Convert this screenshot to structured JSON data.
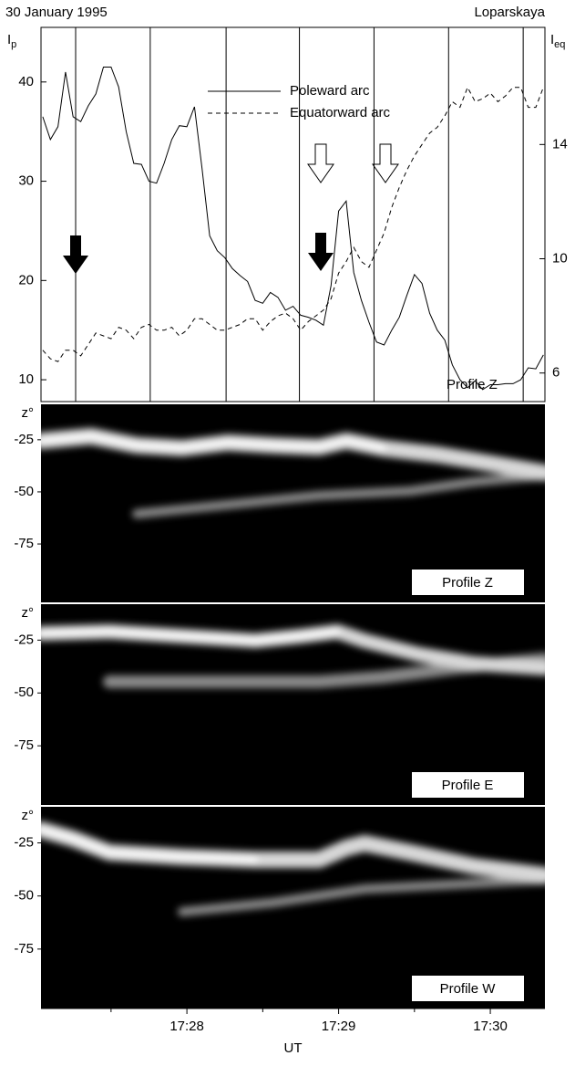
{
  "chart_data": [
    {
      "type": "line",
      "title": "30 January 1995",
      "subtitle": "Loparskaya",
      "annotation": "Profile Z",
      "ylabel": "I",
      "ylabel_subscript": "p",
      "y2label": "I",
      "y2label_subscript": "eq",
      "xlim": [
        1622.3,
        1821.6
      ],
      "x": [
        1623,
        1626,
        1629,
        1632,
        1635,
        1638,
        1641,
        1644,
        1647,
        1650,
        1653,
        1656,
        1659,
        1662,
        1665,
        1668,
        1671,
        1674,
        1677,
        1680,
        1683,
        1686,
        1689,
        1692,
        1695,
        1698,
        1701,
        1704,
        1707,
        1710,
        1713,
        1716,
        1719,
        1722,
        1725,
        1728,
        1731,
        1734,
        1737,
        1740,
        1743,
        1746,
        1749,
        1752,
        1755,
        1758,
        1761,
        1764,
        1767,
        1770,
        1773,
        1776,
        1779,
        1782,
        1785,
        1788,
        1791,
        1794,
        1797,
        1800,
        1803,
        1806,
        1809,
        1812,
        1815,
        1818,
        1821
      ],
      "ylim": [
        7.8,
        45.5
      ],
      "yticks": [
        10,
        20,
        30,
        40
      ],
      "y2lim": [
        5,
        18.1
      ],
      "y2ticks": [
        6,
        10,
        14
      ],
      "vlines": [
        1636,
        1665.5,
        1695.5,
        1724.5,
        1754,
        1783.5,
        1813
      ],
      "series": [
        {
          "name": "Poleward arc",
          "color": "#000000",
          "line_style": "solid",
          "values": [
            36.5,
            34.2,
            35.5,
            41,
            36.5,
            36,
            37.6,
            38.8,
            41.5,
            41.5,
            39.5,
            35,
            31.8,
            31.7,
            30,
            29.8,
            31.8,
            34.2,
            35.6,
            35.5,
            37.5,
            31.3,
            24.5,
            23,
            22.3,
            21.2,
            20.5,
            19.9,
            18,
            17.7,
            18.8,
            18.3,
            17,
            17.4,
            16.5,
            16.3,
            16,
            15.5,
            19.5,
            27,
            28,
            20.8,
            18,
            15.8,
            13.8,
            13.5,
            15,
            16.3,
            18.5,
            20.6,
            19.7,
            16.7,
            15,
            14,
            11.5,
            10,
            9.2,
            9.9,
            9,
            9.5,
            9.5,
            9.6,
            9.6,
            10,
            11.2,
            11.1,
            12.5
          ]
        },
        {
          "name": "Equatorward arc",
          "color": "#000000",
          "line_style": "dashed",
          "axis": "y2",
          "values": [
            6.8,
            6.5,
            6.4,
            6.8,
            6.8,
            6.6,
            7.0,
            7.4,
            7.3,
            7.2,
            7.6,
            7.5,
            7.2,
            7.6,
            7.7,
            7.5,
            7.5,
            7.6,
            7.3,
            7.5,
            7.9,
            7.9,
            7.7,
            7.5,
            7.5,
            7.6,
            7.7,
            7.9,
            7.9,
            7.5,
            7.8,
            8.0,
            8.1,
            7.9,
            7.5,
            7.8,
            8.0,
            8.2,
            8.6,
            9.5,
            9.9,
            10.4,
            9.9,
            9.7,
            10.3,
            10.9,
            11.8,
            12.5,
            13.1,
            13.6,
            14.0,
            14.4,
            14.6,
            15.0,
            15.5,
            15.3,
            16.0,
            15.5,
            15.6,
            15.8,
            15.5,
            15.7,
            16.0,
            16.0,
            15.3,
            15.3,
            16.0
          ]
        }
      ]
    },
    {
      "type": "image",
      "label": "Profile Z",
      "ylabel": "z°",
      "ylim": [
        -103,
        -8
      ],
      "yticks": [
        -25,
        -50,
        -75
      ]
    },
    {
      "type": "image",
      "label": "Profile E",
      "ylabel": "z°",
      "ylim": [
        -103,
        -8
      ],
      "yticks": [
        -25,
        -50,
        -75
      ]
    },
    {
      "type": "image",
      "label": "Profile W",
      "ylabel": "z°",
      "ylim": [
        -103,
        -8
      ],
      "yticks": [
        -25,
        -50,
        -75
      ],
      "xlim": [
        1622.3,
        1821.6
      ],
      "xticks": [
        {
          "value": 1680,
          "label": "17:28"
        },
        {
          "value": 1740,
          "label": "17:29"
        },
        {
          "value": 1800,
          "label": "17:30"
        }
      ],
      "minor_xticks": [
        1650,
        1710,
        1770
      ],
      "xlabel": "UT"
    }
  ]
}
